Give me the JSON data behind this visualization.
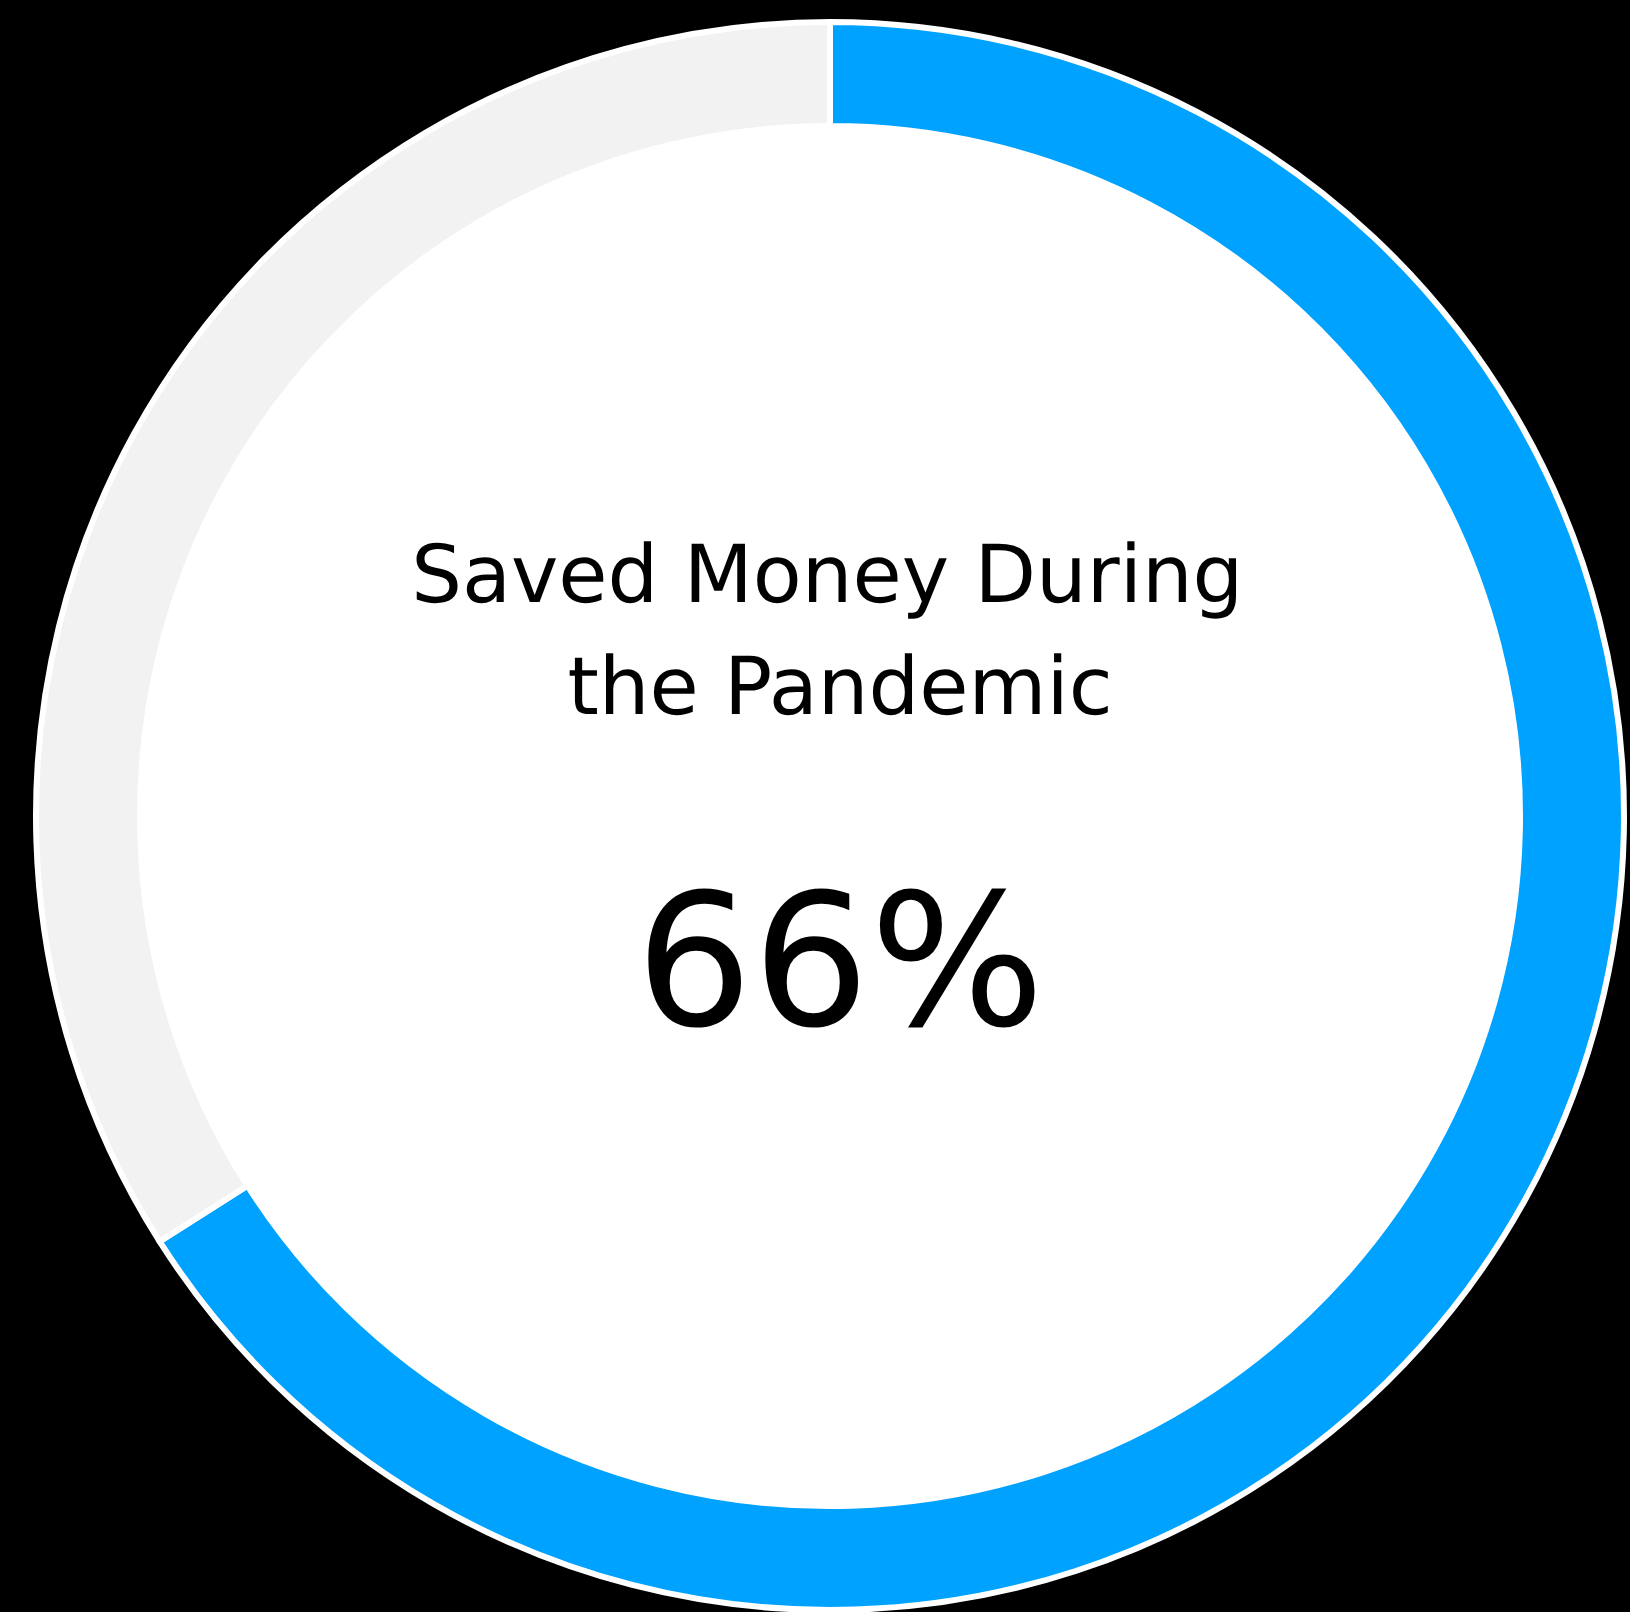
{
  "chart_data": {
    "type": "donut",
    "title": "Saved Money During the Pandemic",
    "categories": [
      null,
      null
    ],
    "values": [
      66,
      34
    ],
    "colors": [
      "#00a2ff",
      "#f2f2f2"
    ],
    "value_labels": [
      "66%",
      null
    ]
  }
}
